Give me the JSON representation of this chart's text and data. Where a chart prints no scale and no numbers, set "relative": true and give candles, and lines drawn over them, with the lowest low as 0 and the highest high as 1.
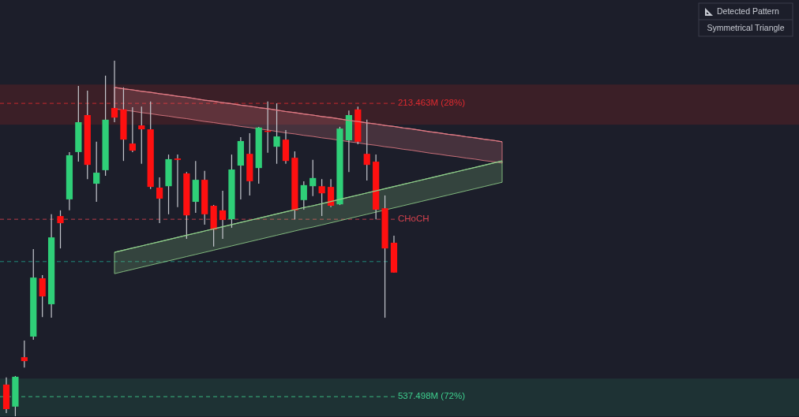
{
  "chart_data": {
    "type": "candlestick",
    "relative": true,
    "title": "Detected Pattern",
    "subtitle": "Symmetrical Triangle",
    "categories": [
      null,
      null,
      null,
      null,
      null,
      null,
      null,
      null,
      null,
      null,
      null,
      null,
      null,
      null,
      null,
      null,
      null,
      null,
      null,
      null,
      null,
      null,
      null,
      null,
      null,
      null,
      null,
      null,
      null,
      null,
      null,
      null,
      null,
      null,
      null,
      null,
      null,
      null,
      null,
      null,
      null,
      null,
      null,
      null,
      null,
      null,
      null,
      null,
      null,
      null,
      null,
      null,
      null,
      null,
      null,
      null
    ],
    "ohlc": [
      [
        0.089,
        0.109,
        0.009,
        0.02
      ],
      [
        0.027,
        0.113,
        0,
        0.111
      ],
      [
        0.166,
        0.213,
        0.137,
        0.155
      ],
      [
        0.224,
        0.47,
        0.215,
        0.39
      ],
      [
        0.388,
        0.397,
        0.279,
        0.337
      ],
      [
        0.315,
        0.568,
        0.277,
        0.503
      ],
      [
        0.563,
        0.579,
        0.472,
        0.543
      ],
      [
        0.61,
        0.743,
        0.579,
        0.734
      ],
      [
        0.743,
        0.929,
        0.716,
        0.827
      ],
      [
        0.847,
        0.916,
        0.667,
        0.707
      ],
      [
        0.654,
        0.772,
        0.603,
        0.685
      ],
      [
        0.692,
        0.958,
        0.676,
        0.834
      ],
      [
        0.867,
        1,
        0.827,
        0.84
      ],
      [
        0.863,
        0.925,
        0.718,
        0.778
      ],
      [
        0.767,
        0.869,
        0.743,
        0.747
      ],
      [
        0.818,
        0.871,
        0.71,
        0.807
      ],
      [
        0.807,
        0.885,
        0.639,
        0.645
      ],
      [
        0.643,
        0.672,
        0.543,
        0.612
      ],
      [
        0.647,
        0.736,
        0.568,
        0.723
      ],
      [
        0.725,
        0.736,
        0.588,
        0.721
      ],
      [
        0.683,
        0.687,
        0.499,
        0.565
      ],
      [
        0.603,
        0.718,
        0.572,
        0.665
      ],
      [
        0.665,
        0.69,
        0.539,
        0.568
      ],
      [
        0.592,
        0.594,
        0.477,
        0.525
      ],
      [
        0.579,
        0.634,
        0.499,
        0.552
      ],
      [
        0.554,
        0.736,
        0.53,
        0.694
      ],
      [
        0.705,
        0.785,
        0.61,
        0.774
      ],
      [
        0.738,
        0.796,
        0.621,
        0.661
      ],
      [
        0.698,
        0.814,
        0.654,
        0.812
      ],
      [
        0.803,
        0.885,
        0.741,
        0.8
      ],
      [
        0.758,
        0.88,
        0.71,
        0.787
      ],
      [
        0.778,
        0.805,
        0.71,
        0.718
      ],
      [
        0.727,
        0.745,
        0.554,
        0.579
      ],
      [
        0.608,
        0.661,
        0.581,
        0.65
      ],
      [
        0.647,
        0.721,
        0.619,
        0.67
      ],
      [
        0.647,
        0.667,
        0.563,
        0.627
      ],
      [
        0.645,
        0.667,
        0.588,
        0.592
      ],
      [
        0.596,
        0.814,
        0.594,
        0.809
      ],
      [
        0.776,
        0.86,
        0.687,
        0.847
      ],
      [
        0.863,
        0.871,
        0.765,
        0.772
      ],
      [
        0.738,
        0.834,
        0.663,
        0.707
      ],
      [
        0.716,
        0.736,
        0.554,
        0.581
      ],
      [
        0.585,
        0.621,
        0.277,
        0.472
      ],
      [
        0.488,
        0.508,
        0.404,
        0.404
      ],
      null,
      null,
      null,
      null,
      null,
      null,
      null,
      null,
      null,
      null,
      null,
      null
    ],
    "series": [
      {
        "type": "line",
        "color": "#e07a84",
        "values": [
          null,
          null,
          null,
          null,
          null,
          null,
          null,
          null,
          null,
          null,
          null,
          null,
          0.925,
          0.921,
          0.918,
          0.914,
          0.911,
          0.907,
          0.904,
          0.9,
          0.897,
          0.893,
          0.889,
          0.886,
          0.882,
          0.879,
          0.875,
          0.872,
          0.868,
          0.865,
          0.861,
          0.857,
          0.854,
          0.85,
          0.847,
          0.843,
          0.84,
          0.836,
          0.832,
          0.829,
          0.825,
          0.822,
          0.818,
          0.815,
          0.811,
          0.808,
          0.804,
          0.8,
          0.797,
          0.793,
          0.79,
          0.786,
          0.783,
          0.779,
          0.776,
          0.772
        ],
        "upper": [
          null,
          null,
          null,
          null,
          null,
          null,
          null,
          null,
          null,
          null,
          null,
          null,
          0.925,
          0.921,
          0.918,
          0.914,
          0.911,
          0.907,
          0.904,
          0.9,
          0.897,
          0.893,
          0.889,
          0.886,
          0.882,
          0.879,
          0.875,
          0.872,
          0.868,
          0.865,
          0.861,
          0.857,
          0.854,
          0.85,
          0.847,
          0.843,
          0.84,
          0.836,
          0.832,
          0.829,
          0.825,
          0.822,
          0.818,
          0.815,
          0.811,
          0.808,
          0.804,
          0.8,
          0.797,
          0.793,
          0.79,
          0.786,
          0.783,
          0.779,
          0.776,
          0.772
        ],
        "lower": [
          null,
          null,
          null,
          null,
          null,
          null,
          null,
          null,
          null,
          null,
          null,
          null,
          0.865,
          0.861,
          0.858,
          0.854,
          0.851,
          0.847,
          0.844,
          0.84,
          0.837,
          0.833,
          0.829,
          0.826,
          0.822,
          0.819,
          0.815,
          0.812,
          0.808,
          0.805,
          0.801,
          0.797,
          0.794,
          0.79,
          0.787,
          0.783,
          0.78,
          0.776,
          0.772,
          0.769,
          0.765,
          0.762,
          0.758,
          0.755,
          0.751,
          0.748,
          0.744,
          0.74,
          0.737,
          0.733,
          0.73,
          0.726,
          0.723,
          0.719,
          0.716,
          0.712
        ]
      },
      {
        "type": "line",
        "color": "#8fce8a",
        "values": [
          null,
          null,
          null,
          null,
          null,
          null,
          null,
          null,
          null,
          null,
          null,
          null,
          0.461,
          0.467,
          0.473,
          0.479,
          0.485,
          0.491,
          0.497,
          0.503,
          0.509,
          0.515,
          0.521,
          0.527,
          0.533,
          0.539,
          0.545,
          0.551,
          0.557,
          0.563,
          0.569,
          0.575,
          0.581,
          0.587,
          0.592,
          0.598,
          0.604,
          0.61,
          0.616,
          0.622,
          0.628,
          0.634,
          0.64,
          0.646,
          0.652,
          0.658,
          0.664,
          0.67,
          0.676,
          0.682,
          0.688,
          0.694,
          0.7,
          0.706,
          0.712,
          0.718
        ],
        "upper": [
          null,
          null,
          null,
          null,
          null,
          null,
          null,
          null,
          null,
          null,
          null,
          null,
          0.461,
          0.467,
          0.473,
          0.479,
          0.485,
          0.491,
          0.497,
          0.503,
          0.509,
          0.515,
          0.521,
          0.527,
          0.533,
          0.539,
          0.545,
          0.551,
          0.557,
          0.563,
          0.569,
          0.575,
          0.581,
          0.587,
          0.592,
          0.598,
          0.604,
          0.61,
          0.616,
          0.622,
          0.628,
          0.634,
          0.64,
          0.646,
          0.652,
          0.658,
          0.664,
          0.67,
          0.676,
          0.682,
          0.688,
          0.694,
          0.7,
          0.706,
          0.712,
          0.718
        ],
        "lower": [
          null,
          null,
          null,
          null,
          null,
          null,
          null,
          null,
          null,
          null,
          null,
          null,
          0.401,
          0.407,
          0.413,
          0.419,
          0.425,
          0.431,
          0.437,
          0.443,
          0.449,
          0.455,
          0.461,
          0.467,
          0.473,
          0.479,
          0.485,
          0.491,
          0.497,
          0.503,
          0.509,
          0.515,
          0.521,
          0.527,
          0.532,
          0.538,
          0.544,
          0.55,
          0.556,
          0.562,
          0.568,
          0.574,
          0.58,
          0.586,
          0.592,
          0.598,
          0.604,
          0.61,
          0.616,
          0.622,
          0.628,
          0.634,
          0.64,
          0.646,
          0.652,
          0.658
        ]
      }
    ],
    "bands": [
      {
        "axis": "y",
        "from": 0.82,
        "to": 0.933,
        "color": "#3b1f27"
      },
      {
        "axis": "y",
        "from": 0,
        "to": 0.106,
        "color": "#1e3234"
      }
    ],
    "ref_lines": [
      {
        "axis": "y",
        "value": 0.88,
        "label": "213.463M (28%)",
        "color": "#e02a2f",
        "line_style": "dashed"
      },
      {
        "axis": "y",
        "value": 0.055,
        "label": "537.498M (72%)",
        "color": "#3ecf8e",
        "line_style": "dashed"
      },
      {
        "axis": "y",
        "value": 0.554,
        "label": "CHoCH",
        "color": "#d6424e",
        "line_style": "dashed"
      },
      {
        "axis": "y",
        "value": 0.435,
        "color": "#1f9e8a",
        "line_style": "dashed"
      }
    ]
  }
}
